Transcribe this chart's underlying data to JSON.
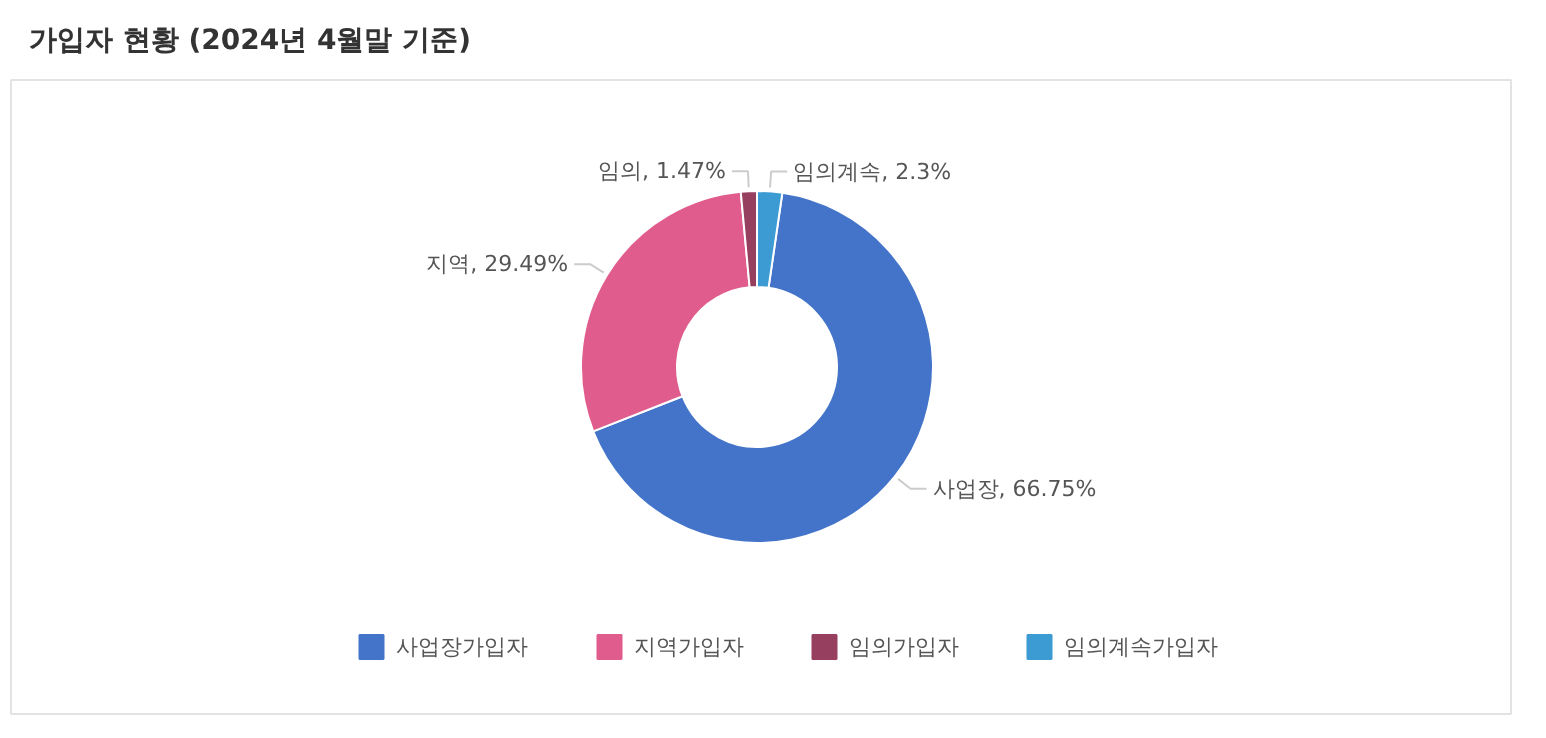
{
  "chart_data": {
    "type": "donut",
    "title": "가입자 현황 (2024년 4월말 기준)",
    "categories": [
      "사업장가입자",
      "지역가입자",
      "임의가입자",
      "임의계속가입자"
    ],
    "values": [
      66.75,
      29.49,
      1.47,
      2.3
    ],
    "colors": [
      "#4474c9",
      "#e05c8c",
      "#963f5e",
      "#3b9bd2"
    ],
    "value_labels": [
      "사업장, 66.75%",
      "지역, 29.49%",
      "임의, 1.47%",
      "임의계속, 2.3%"
    ],
    "legend": "bottom"
  }
}
